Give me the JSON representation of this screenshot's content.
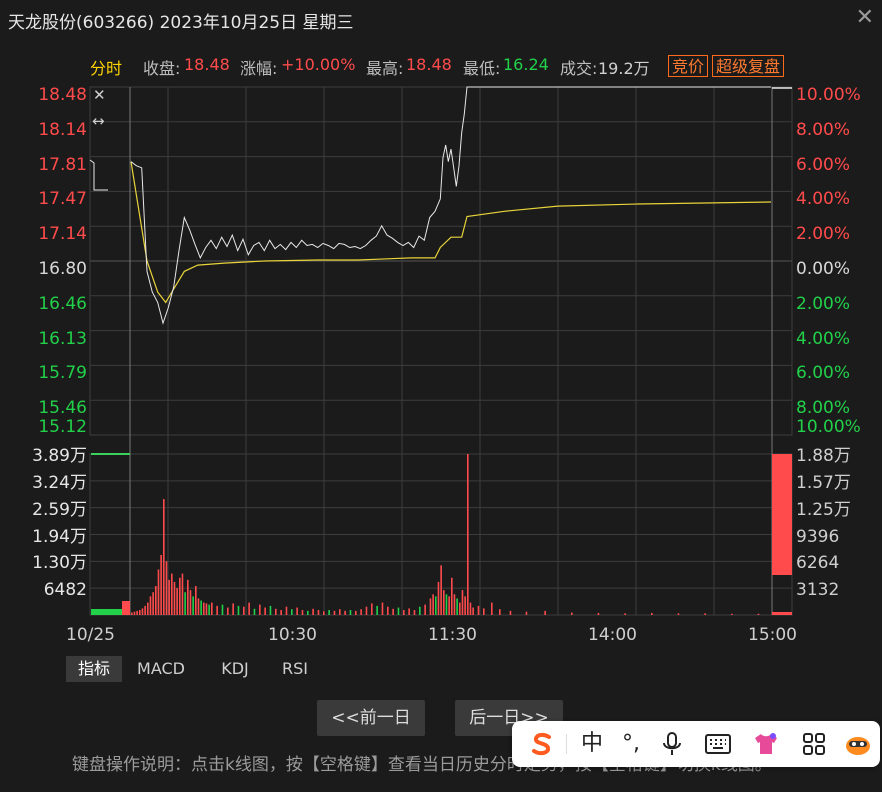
{
  "window": {
    "title": "天龙股份(603266) 2023年10月25日 星期三"
  },
  "info_bar": {
    "mode": "分时",
    "close_label": "收盘:",
    "close_value": "18.48",
    "change_label": "涨幅:",
    "change_value": "+10.00%",
    "high_label": "最高:",
    "high_value": "18.48",
    "low_label": "最低:",
    "low_value": "16.24",
    "volume_label": "成交:",
    "volume_value": "19.2万",
    "auction_button": "竞价",
    "replay_button": "超级复盘"
  },
  "colors": {
    "up": "#ff4b4b",
    "down": "#22d04a",
    "neutral": "#d8d8d8",
    "price_line": "#e8e8e8",
    "avg_line": "#e8d43a",
    "grid": "#3c3c3c",
    "accent_orange": "#ff7a2e"
  },
  "chart_data": {
    "type": "line",
    "title": "",
    "price_axis": {
      "left_ticks": [
        "18.48",
        "18.14",
        "17.81",
        "17.47",
        "17.14",
        "16.80",
        "16.46",
        "16.13",
        "15.79",
        "15.46",
        "15.12"
      ],
      "right_ticks": [
        "10.00%",
        "8.00%",
        "6.00%",
        "4.00%",
        "2.00%",
        "0.00%",
        "2.00%",
        "4.00%",
        "6.00%",
        "8.00%",
        "10.00%"
      ],
      "ylim": [
        15.12,
        18.48
      ],
      "prev_close": 16.8
    },
    "volume_axis": {
      "left_ticks": [
        "3.89万",
        "3.24万",
        "2.59万",
        "1.94万",
        "1.30万",
        "6482"
      ],
      "right_ticks": [
        "1.88万",
        "1.57万",
        "1.25万",
        "9396",
        "6264",
        "3132"
      ]
    },
    "x_ticks": [
      "10/25",
      "10:30",
      "11:30",
      "14:00",
      "15:00"
    ],
    "series": [
      {
        "name": "价格",
        "values": [
          [
            0,
            17.76
          ],
          [
            2,
            17.72
          ],
          [
            4,
            17.7
          ],
          [
            6,
            16.7
          ],
          [
            8,
            16.5
          ],
          [
            10,
            16.4
          ],
          [
            12,
            16.2
          ],
          [
            14,
            16.35
          ],
          [
            16,
            16.55
          ],
          [
            18,
            16.9
          ],
          [
            20,
            17.22
          ],
          [
            22,
            17.1
          ],
          [
            24,
            16.96
          ],
          [
            26,
            16.83
          ],
          [
            28,
            16.93
          ],
          [
            30,
            17.0
          ],
          [
            32,
            16.92
          ],
          [
            34,
            17.03
          ],
          [
            36,
            16.94
          ],
          [
            38,
            17.05
          ],
          [
            40,
            16.9
          ],
          [
            42,
            17.01
          ],
          [
            44,
            16.86
          ],
          [
            46,
            16.95
          ],
          [
            48,
            16.98
          ],
          [
            50,
            16.9
          ],
          [
            52,
            17.0
          ],
          [
            54,
            16.92
          ],
          [
            56,
            16.96
          ],
          [
            58,
            16.91
          ],
          [
            60,
            16.98
          ],
          [
            62,
            16.93
          ],
          [
            64,
            17.0
          ],
          [
            66,
            16.95
          ],
          [
            68,
            16.96
          ],
          [
            70,
            16.93
          ],
          [
            72,
            16.97
          ],
          [
            74,
            16.95
          ],
          [
            76,
            16.92
          ],
          [
            78,
            16.97
          ],
          [
            80,
            16.96
          ],
          [
            82,
            16.93
          ],
          [
            84,
            16.94
          ],
          [
            86,
            16.92
          ],
          [
            88,
            16.95
          ],
          [
            90,
            17.0
          ],
          [
            92,
            17.04
          ],
          [
            94,
            17.14
          ],
          [
            96,
            17.05
          ],
          [
            98,
            17.02
          ],
          [
            100,
            16.98
          ],
          [
            102,
            16.95
          ],
          [
            104,
            16.98
          ],
          [
            106,
            16.93
          ],
          [
            108,
            17.04
          ],
          [
            110,
            17.0
          ],
          [
            112,
            17.22
          ],
          [
            114,
            17.28
          ],
          [
            116,
            17.4
          ],
          [
            117,
            17.8
          ],
          [
            118,
            17.92
          ],
          [
            119,
            17.76
          ],
          [
            120,
            17.88
          ],
          [
            121,
            17.7
          ],
          [
            122,
            17.52
          ],
          [
            123,
            17.72
          ],
          [
            124,
            18.04
          ],
          [
            125,
            18.22
          ],
          [
            126,
            18.48
          ],
          [
            130,
            18.48
          ],
          [
            145,
            18.48
          ],
          [
            165,
            18.48
          ],
          [
            185,
            18.48
          ],
          [
            205,
            18.48
          ],
          [
            225,
            18.48
          ],
          [
            240,
            18.48
          ]
        ]
      },
      {
        "name": "均价",
        "values": [
          [
            0,
            17.76
          ],
          [
            6,
            16.8
          ],
          [
            10,
            16.5
          ],
          [
            13,
            16.4
          ],
          [
            16,
            16.53
          ],
          [
            20,
            16.7
          ],
          [
            25,
            16.76
          ],
          [
            35,
            16.78
          ],
          [
            50,
            16.8
          ],
          [
            70,
            16.81
          ],
          [
            85,
            16.81
          ],
          [
            105,
            16.83
          ],
          [
            114,
            16.83
          ],
          [
            116,
            16.93
          ],
          [
            120,
            17.03
          ],
          [
            124,
            17.03
          ],
          [
            126,
            17.23
          ],
          [
            140,
            17.28
          ],
          [
            160,
            17.33
          ],
          [
            190,
            17.35
          ],
          [
            240,
            17.37
          ]
        ]
      }
    ],
    "volume": {
      "unit": "手",
      "auction_open": 3.89,
      "auction_close": 1.88,
      "bars_scale_max": 3.89,
      "bars": [
        [
          0,
          0.06,
          "up"
        ],
        [
          1,
          0.08,
          "up"
        ],
        [
          2,
          0.1,
          "up"
        ],
        [
          3,
          0.12,
          "up"
        ],
        [
          4,
          0.16,
          "up"
        ],
        [
          5,
          0.22,
          "up"
        ],
        [
          6,
          0.3,
          "up"
        ],
        [
          7,
          0.45,
          "up"
        ],
        [
          8,
          0.55,
          "up"
        ],
        [
          9,
          0.7,
          "up"
        ],
        [
          10,
          1.1,
          "up"
        ],
        [
          11,
          1.45,
          "up"
        ],
        [
          12,
          2.8,
          "up"
        ],
        [
          13,
          1.3,
          "up"
        ],
        [
          14,
          0.85,
          "up"
        ],
        [
          15,
          1.0,
          "up"
        ],
        [
          16,
          0.8,
          "up"
        ],
        [
          17,
          0.65,
          "up"
        ],
        [
          18,
          0.9,
          "up"
        ],
        [
          19,
          1.0,
          "up"
        ],
        [
          20,
          0.55,
          "down"
        ],
        [
          21,
          0.85,
          "up"
        ],
        [
          22,
          0.6,
          "up"
        ],
        [
          23,
          0.45,
          "down"
        ],
        [
          24,
          0.7,
          "up"
        ],
        [
          25,
          0.4,
          "up"
        ],
        [
          26,
          0.35,
          "down"
        ],
        [
          27,
          0.3,
          "up"
        ],
        [
          28,
          0.28,
          "up"
        ],
        [
          29,
          0.25,
          "down"
        ],
        [
          30,
          0.3,
          "up"
        ],
        [
          32,
          0.22,
          "up"
        ],
        [
          34,
          0.25,
          "down"
        ],
        [
          36,
          0.18,
          "up"
        ],
        [
          38,
          0.28,
          "up"
        ],
        [
          40,
          0.22,
          "down"
        ],
        [
          42,
          0.2,
          "up"
        ],
        [
          44,
          0.3,
          "up"
        ],
        [
          46,
          0.15,
          "down"
        ],
        [
          48,
          0.25,
          "up"
        ],
        [
          50,
          0.18,
          "up"
        ],
        [
          52,
          0.22,
          "down"
        ],
        [
          54,
          0.15,
          "up"
        ],
        [
          56,
          0.12,
          "up"
        ],
        [
          58,
          0.2,
          "up"
        ],
        [
          60,
          0.14,
          "down"
        ],
        [
          62,
          0.18,
          "up"
        ],
        [
          64,
          0.12,
          "up"
        ],
        [
          66,
          0.1,
          "down"
        ],
        [
          68,
          0.15,
          "up"
        ],
        [
          70,
          0.12,
          "up"
        ],
        [
          72,
          0.09,
          "up"
        ],
        [
          74,
          0.12,
          "down"
        ],
        [
          76,
          0.1,
          "up"
        ],
        [
          78,
          0.14,
          "up"
        ],
        [
          80,
          0.1,
          "up"
        ],
        [
          82,
          0.12,
          "down"
        ],
        [
          84,
          0.1,
          "up"
        ],
        [
          86,
          0.14,
          "up"
        ],
        [
          88,
          0.2,
          "up"
        ],
        [
          90,
          0.28,
          "up"
        ],
        [
          92,
          0.22,
          "down"
        ],
        [
          94,
          0.3,
          "up"
        ],
        [
          96,
          0.2,
          "up"
        ],
        [
          98,
          0.15,
          "up"
        ],
        [
          100,
          0.18,
          "down"
        ],
        [
          102,
          0.12,
          "up"
        ],
        [
          104,
          0.16,
          "up"
        ],
        [
          106,
          0.12,
          "up"
        ],
        [
          108,
          0.2,
          "down"
        ],
        [
          110,
          0.25,
          "up"
        ],
        [
          112,
          0.4,
          "up"
        ],
        [
          113,
          0.5,
          "up"
        ],
        [
          114,
          0.45,
          "down"
        ],
        [
          115,
          0.8,
          "up"
        ],
        [
          116,
          1.2,
          "up"
        ],
        [
          117,
          0.6,
          "up"
        ],
        [
          118,
          0.5,
          "down"
        ],
        [
          119,
          0.45,
          "up"
        ],
        [
          120,
          0.9,
          "up"
        ],
        [
          121,
          0.5,
          "up"
        ],
        [
          122,
          0.4,
          "down"
        ],
        [
          123,
          0.3,
          "up"
        ],
        [
          124,
          0.6,
          "up"
        ],
        [
          125,
          0.45,
          "up"
        ],
        [
          126,
          3.89,
          "up"
        ],
        [
          127,
          0.3,
          "up"
        ],
        [
          128,
          0.18,
          "up"
        ],
        [
          130,
          0.22,
          "up"
        ],
        [
          132,
          0.16,
          "up"
        ],
        [
          135,
          0.3,
          "up"
        ],
        [
          138,
          0.14,
          "up"
        ],
        [
          142,
          0.1,
          "up"
        ],
        [
          148,
          0.08,
          "up"
        ],
        [
          155,
          0.1,
          "up"
        ],
        [
          165,
          0.06,
          "up"
        ],
        [
          175,
          0.05,
          "up"
        ],
        [
          185,
          0.04,
          "up"
        ],
        [
          195,
          0.05,
          "up"
        ],
        [
          205,
          0.04,
          "up"
        ],
        [
          215,
          0.04,
          "up"
        ],
        [
          225,
          0.03,
          "up"
        ],
        [
          235,
          0.03,
          "up"
        ]
      ]
    }
  },
  "tabs": [
    "指标",
    "MACD",
    "KDJ",
    "RSI"
  ],
  "nav": {
    "prev_day": "<<前一日",
    "next_day": "后一日>>"
  },
  "help_text": "键盘操作说明：点击k线图，按【空格键】查看当日历史分时走势，按【空格键】切换k线图。",
  "ime": {
    "chinese_mode": "中",
    "punct": "°,"
  }
}
